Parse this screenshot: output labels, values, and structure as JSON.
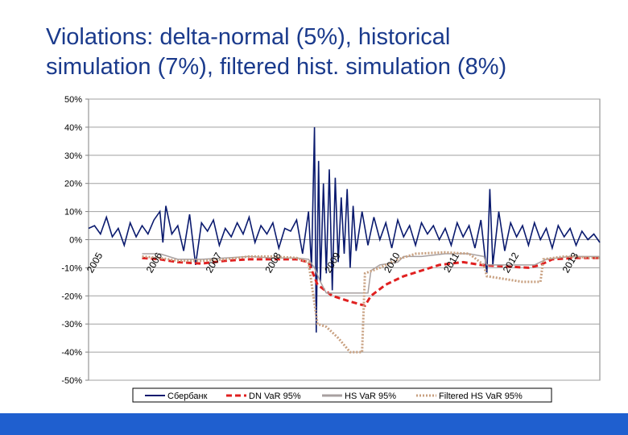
{
  "slide": {
    "title_line1": "Violations: delta-normal (5%), historical",
    "title_line2": "simulation (7%), filtered hist. simulation (8%)"
  },
  "colors": {
    "title": "#1a3a8c",
    "footer": "#1f5fcf"
  },
  "chart_data": {
    "type": "line",
    "title": "",
    "xlabel": "",
    "ylabel": "",
    "ylim": [
      -0.5,
      0.5
    ],
    "y_ticks": [
      "50%",
      "40%",
      "30%",
      "20%",
      "10%",
      "0%",
      "-10%",
      "-20%",
      "-30%",
      "-40%",
      "-50%"
    ],
    "x_ticks": [
      "2005",
      "2006",
      "2007",
      "2008",
      "2009",
      "2010",
      "2011",
      "2012",
      "2013"
    ],
    "x_range": [
      2005.0,
      2013.6
    ],
    "grid": true,
    "legend_position": "bottom",
    "series": [
      {
        "name": "Сбербанк",
        "color": "#0a1a6e",
        "style": "solid",
        "points": [
          [
            2005.0,
            0.04
          ],
          [
            2005.1,
            0.05
          ],
          [
            2005.2,
            0.02
          ],
          [
            2005.3,
            0.08
          ],
          [
            2005.4,
            0.01
          ],
          [
            2005.5,
            0.04
          ],
          [
            2005.6,
            -0.02
          ],
          [
            2005.7,
            0.06
          ],
          [
            2005.8,
            0.01
          ],
          [
            2005.9,
            0.05
          ],
          [
            2006.0,
            0.02
          ],
          [
            2006.1,
            0.07
          ],
          [
            2006.2,
            0.1
          ],
          [
            2006.25,
            -0.01
          ],
          [
            2006.3,
            0.12
          ],
          [
            2006.4,
            0.02
          ],
          [
            2006.5,
            0.05
          ],
          [
            2006.6,
            -0.04
          ],
          [
            2006.7,
            0.09
          ],
          [
            2006.8,
            -0.09
          ],
          [
            2006.9,
            0.06
          ],
          [
            2007.0,
            0.03
          ],
          [
            2007.1,
            0.07
          ],
          [
            2007.2,
            -0.02
          ],
          [
            2007.3,
            0.04
          ],
          [
            2007.4,
            0.01
          ],
          [
            2007.5,
            0.06
          ],
          [
            2007.6,
            0.02
          ],
          [
            2007.7,
            0.08
          ],
          [
            2007.8,
            -0.01
          ],
          [
            2007.9,
            0.05
          ],
          [
            2008.0,
            0.02
          ],
          [
            2008.1,
            0.06
          ],
          [
            2008.2,
            -0.03
          ],
          [
            2008.3,
            0.04
          ],
          [
            2008.4,
            0.03
          ],
          [
            2008.5,
            0.07
          ],
          [
            2008.6,
            -0.05
          ],
          [
            2008.7,
            0.1
          ],
          [
            2008.75,
            -0.1
          ],
          [
            2008.8,
            0.4
          ],
          [
            2008.83,
            -0.33
          ],
          [
            2008.87,
            0.28
          ],
          [
            2008.9,
            -0.15
          ],
          [
            2008.95,
            0.2
          ],
          [
            2009.0,
            -0.12
          ],
          [
            2009.05,
            0.25
          ],
          [
            2009.1,
            -0.18
          ],
          [
            2009.15,
            0.22
          ],
          [
            2009.2,
            -0.08
          ],
          [
            2009.25,
            0.15
          ],
          [
            2009.3,
            -0.05
          ],
          [
            2009.35,
            0.18
          ],
          [
            2009.4,
            -0.1
          ],
          [
            2009.45,
            0.12
          ],
          [
            2009.5,
            -0.04
          ],
          [
            2009.6,
            0.1
          ],
          [
            2009.7,
            -0.02
          ],
          [
            2009.8,
            0.08
          ],
          [
            2009.9,
            0.0
          ],
          [
            2010.0,
            0.06
          ],
          [
            2010.1,
            -0.03
          ],
          [
            2010.2,
            0.07
          ],
          [
            2010.3,
            0.01
          ],
          [
            2010.4,
            0.05
          ],
          [
            2010.5,
            -0.02
          ],
          [
            2010.6,
            0.06
          ],
          [
            2010.7,
            0.02
          ],
          [
            2010.8,
            0.05
          ],
          [
            2010.9,
            0.0
          ],
          [
            2011.0,
            0.04
          ],
          [
            2011.1,
            -0.02
          ],
          [
            2011.2,
            0.06
          ],
          [
            2011.3,
            0.01
          ],
          [
            2011.4,
            0.05
          ],
          [
            2011.5,
            -0.03
          ],
          [
            2011.6,
            0.07
          ],
          [
            2011.7,
            -0.12
          ],
          [
            2011.75,
            0.18
          ],
          [
            2011.8,
            -0.09
          ],
          [
            2011.9,
            0.1
          ],
          [
            2012.0,
            -0.04
          ],
          [
            2012.1,
            0.06
          ],
          [
            2012.2,
            0.01
          ],
          [
            2012.3,
            0.05
          ],
          [
            2012.4,
            -0.02
          ],
          [
            2012.5,
            0.06
          ],
          [
            2012.6,
            0.0
          ],
          [
            2012.7,
            0.04
          ],
          [
            2012.8,
            -0.03
          ],
          [
            2012.9,
            0.05
          ],
          [
            2013.0,
            0.01
          ],
          [
            2013.1,
            0.04
          ],
          [
            2013.2,
            -0.02
          ],
          [
            2013.3,
            0.03
          ],
          [
            2013.4,
            0.0
          ],
          [
            2013.5,
            0.02
          ],
          [
            2013.6,
            -0.01
          ]
        ]
      },
      {
        "name": "DN VaR 95%",
        "color": "#e02020",
        "style": "dashed",
        "points": [
          [
            2005.9,
            -0.065
          ],
          [
            2006.2,
            -0.07
          ],
          [
            2006.5,
            -0.08
          ],
          [
            2006.9,
            -0.085
          ],
          [
            2007.3,
            -0.075
          ],
          [
            2007.7,
            -0.07
          ],
          [
            2008.1,
            -0.07
          ],
          [
            2008.5,
            -0.07
          ],
          [
            2008.7,
            -0.08
          ],
          [
            2008.85,
            -0.16
          ],
          [
            2009.1,
            -0.2
          ],
          [
            2009.4,
            -0.22
          ],
          [
            2009.65,
            -0.235
          ],
          [
            2009.75,
            -0.2
          ],
          [
            2010.0,
            -0.16
          ],
          [
            2010.3,
            -0.13
          ],
          [
            2010.6,
            -0.11
          ],
          [
            2010.9,
            -0.09
          ],
          [
            2011.3,
            -0.08
          ],
          [
            2011.6,
            -0.09
          ],
          [
            2012.0,
            -0.095
          ],
          [
            2012.4,
            -0.1
          ],
          [
            2012.6,
            -0.09
          ],
          [
            2012.8,
            -0.07
          ],
          [
            2013.2,
            -0.065
          ],
          [
            2013.6,
            -0.065
          ]
        ]
      },
      {
        "name": "HS VaR 95%",
        "color": "#a8a0a0",
        "style": "solid",
        "points": [
          [
            2005.9,
            -0.05
          ],
          [
            2006.2,
            -0.05
          ],
          [
            2006.5,
            -0.07
          ],
          [
            2006.9,
            -0.07
          ],
          [
            2007.3,
            -0.065
          ],
          [
            2007.7,
            -0.06
          ],
          [
            2008.1,
            -0.065
          ],
          [
            2008.5,
            -0.065
          ],
          [
            2008.7,
            -0.07
          ],
          [
            2008.8,
            -0.1
          ],
          [
            2008.9,
            -0.15
          ],
          [
            2009.0,
            -0.19
          ],
          [
            2009.4,
            -0.19
          ],
          [
            2009.7,
            -0.19
          ],
          [
            2009.75,
            -0.11
          ],
          [
            2009.9,
            -0.09
          ],
          [
            2010.2,
            -0.08
          ],
          [
            2010.3,
            -0.06
          ],
          [
            2010.6,
            -0.06
          ],
          [
            2011.0,
            -0.05
          ],
          [
            2011.4,
            -0.05
          ],
          [
            2011.65,
            -0.06
          ],
          [
            2011.7,
            -0.09
          ],
          [
            2012.0,
            -0.09
          ],
          [
            2012.5,
            -0.09
          ],
          [
            2012.7,
            -0.07
          ],
          [
            2013.1,
            -0.06
          ],
          [
            2013.6,
            -0.06
          ]
        ]
      },
      {
        "name": "Filtered HS VaR 95%",
        "color": "#c8a080",
        "style": "dotted",
        "points": [
          [
            2005.9,
            -0.06
          ],
          [
            2006.2,
            -0.065
          ],
          [
            2006.5,
            -0.075
          ],
          [
            2006.9,
            -0.075
          ],
          [
            2007.3,
            -0.07
          ],
          [
            2007.7,
            -0.06
          ],
          [
            2008.1,
            -0.06
          ],
          [
            2008.5,
            -0.065
          ],
          [
            2008.7,
            -0.08
          ],
          [
            2008.85,
            -0.3
          ],
          [
            2009.0,
            -0.31
          ],
          [
            2009.2,
            -0.35
          ],
          [
            2009.4,
            -0.4
          ],
          [
            2009.6,
            -0.4
          ],
          [
            2009.65,
            -0.12
          ],
          [
            2009.9,
            -0.1
          ],
          [
            2010.2,
            -0.07
          ],
          [
            2010.5,
            -0.05
          ],
          [
            2011.0,
            -0.045
          ],
          [
            2011.4,
            -0.05
          ],
          [
            2011.65,
            -0.09
          ],
          [
            2011.7,
            -0.13
          ],
          [
            2012.0,
            -0.14
          ],
          [
            2012.3,
            -0.15
          ],
          [
            2012.6,
            -0.15
          ],
          [
            2012.65,
            -0.07
          ],
          [
            2013.0,
            -0.06
          ],
          [
            2013.6,
            -0.065
          ]
        ]
      }
    ]
  }
}
